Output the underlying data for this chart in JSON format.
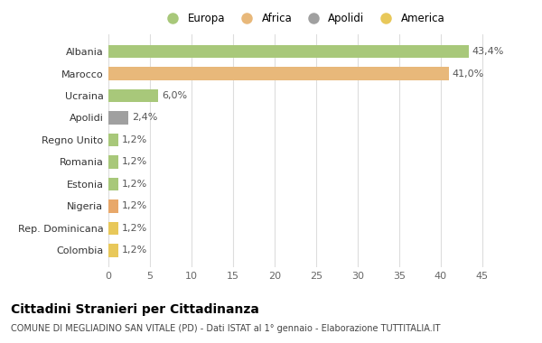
{
  "categories": [
    "Albania",
    "Marocco",
    "Ucraina",
    "Apolidi",
    "Regno Unito",
    "Romania",
    "Estonia",
    "Nigeria",
    "Rep. Dominicana",
    "Colombia"
  ],
  "values": [
    43.4,
    41.0,
    6.0,
    2.4,
    1.2,
    1.2,
    1.2,
    1.2,
    1.2,
    1.2
  ],
  "labels": [
    "43,4%",
    "41,0%",
    "6,0%",
    "2,4%",
    "1,2%",
    "1,2%",
    "1,2%",
    "1,2%",
    "1,2%",
    "1,2%"
  ],
  "country_colors": {
    "Albania": "#a8c87a",
    "Marocco": "#e8b87a",
    "Ucraina": "#a8c87a",
    "Apolidi": "#a0a0a0",
    "Regno Unito": "#a8c87a",
    "Romania": "#a8c87a",
    "Estonia": "#a8c87a",
    "Nigeria": "#e8a86a",
    "Rep. Dominicana": "#e8c85a",
    "Colombia": "#e8c85a"
  },
  "legend_labels": [
    "Europa",
    "Africa",
    "Apolidi",
    "America"
  ],
  "legend_colors": [
    "#a8c87a",
    "#e8b87a",
    "#a0a0a0",
    "#e8c85a"
  ],
  "title": "Cittadini Stranieri per Cittadinanza",
  "subtitle": "COMUNE DI MEGLIADINO SAN VITALE (PD) - Dati ISTAT al 1° gennaio - Elaborazione TUTTITALIA.IT",
  "xlim": [
    0,
    47
  ],
  "xticks": [
    0,
    5,
    10,
    15,
    20,
    25,
    30,
    35,
    40,
    45
  ],
  "background_color": "#ffffff",
  "grid_color": "#dddddd"
}
